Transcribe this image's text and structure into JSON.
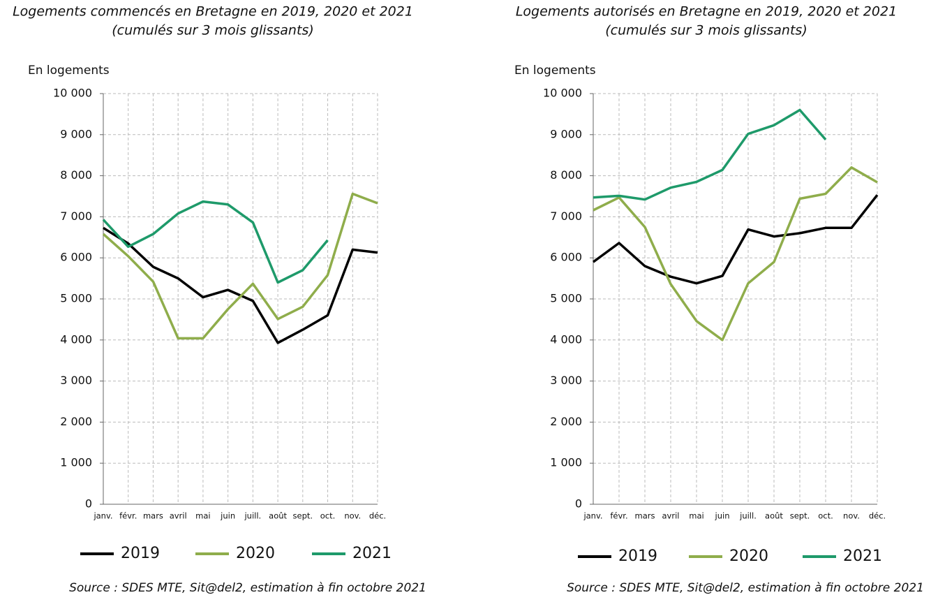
{
  "chart_data": [
    {
      "type": "line",
      "title": "Logements commencés en Bretagne en 2019, 2020 et 2021",
      "subtitle": "(cumulés sur 3 mois glissants)",
      "y_label": "En logements",
      "categories": [
        "janv.",
        "févr.",
        "mars",
        "avril",
        "mai",
        "juin",
        "juill.",
        "août",
        "sept.",
        "oct.",
        "nov.",
        "déc."
      ],
      "series": [
        {
          "name": "2019",
          "color": "#000000",
          "values": [
            6730,
            6350,
            5780,
            5500,
            5040,
            5220,
            4950,
            3930,
            4250,
            4600,
            6200,
            6130
          ]
        },
        {
          "name": "2020",
          "color": "#8fad4b",
          "values": [
            6580,
            6040,
            5420,
            4040,
            4040,
            4750,
            5370,
            4510,
            4810,
            5580,
            7560,
            7330
          ]
        },
        {
          "name": "2021",
          "color": "#1e9a6a",
          "values": [
            6930,
            6270,
            6580,
            7080,
            7370,
            7300,
            6860,
            5400,
            5700,
            6430,
            null,
            null
          ]
        }
      ],
      "ylim": [
        0,
        10000
      ],
      "yticks": [
        0,
        {
          "value": 1000,
          "label": "1 000"
        },
        {
          "value": 2000,
          "label": "2 000"
        },
        {
          "value": 3000,
          "label": "3 000"
        },
        {
          "value": 4000,
          "label": "4 000"
        },
        {
          "value": 5000,
          "label": "5 000"
        },
        {
          "value": 6000,
          "label": "6 000"
        },
        {
          "value": 7000,
          "label": "7 000"
        },
        {
          "value": 8000,
          "label": "8 000"
        },
        {
          "value": 9000,
          "label": "9 000"
        },
        {
          "value": 10000,
          "label": "10 000"
        }
      ],
      "grid": true,
      "legend": "bottom",
      "source": "Source : SDES MTE, Sit@del2, estimation à fin octobre 2021"
    },
    {
      "type": "line",
      "title": "Logements autorisés en Bretagne en 2019, 2020 et 2021",
      "subtitle": "(cumulés sur 3 mois glissants)",
      "y_label": "En logements",
      "categories": [
        "janv.",
        "févr.",
        "mars",
        "avril",
        "mai",
        "juin",
        "juill.",
        "août",
        "sept.",
        "oct.",
        "nov.",
        "déc."
      ],
      "series": [
        {
          "name": "2019",
          "color": "#000000",
          "values": [
            5900,
            6360,
            5800,
            5540,
            5380,
            5560,
            6690,
            6520,
            6600,
            6730,
            6730,
            7530
          ]
        },
        {
          "name": "2020",
          "color": "#8fad4b",
          "values": [
            7160,
            7470,
            6750,
            5360,
            4460,
            4000,
            5380,
            5900,
            7440,
            7560,
            8200,
            7840
          ]
        },
        {
          "name": "2021",
          "color": "#1e9a6a",
          "values": [
            7470,
            7510,
            7420,
            7710,
            7850,
            8140,
            9020,
            9230,
            9600,
            8880,
            null,
            null
          ]
        }
      ],
      "ylim": [
        0,
        10000
      ],
      "yticks": [
        0,
        {
          "value": 1000,
          "label": "1 000"
        },
        {
          "value": 2000,
          "label": "2 000"
        },
        {
          "value": 3000,
          "label": "3 000"
        },
        {
          "value": 4000,
          "label": "4 000"
        },
        {
          "value": 5000,
          "label": "5 000"
        },
        {
          "value": 6000,
          "label": "6 000"
        },
        {
          "value": 7000,
          "label": "7 000"
        },
        {
          "value": 8000,
          "label": "8 000"
        },
        {
          "value": 9000,
          "label": "9 000"
        },
        {
          "value": 10000,
          "label": "10 000"
        }
      ],
      "grid": true,
      "legend": "bottom",
      "source": "Source : SDES MTE, Sit@del2, estimation à fin octobre 2021"
    }
  ]
}
